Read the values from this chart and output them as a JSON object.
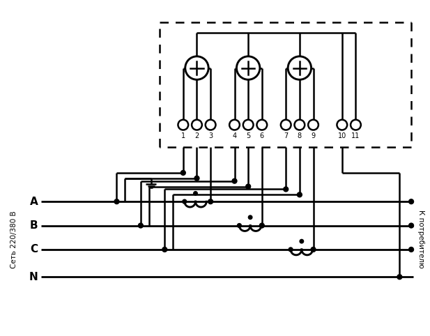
{
  "bg_color": "#ffffff",
  "line_color": "#000000",
  "lw": 1.8,
  "fig_width": 6.17,
  "fig_height": 4.82,
  "dpi": 100,
  "left_label": "Сеть 220/380 В",
  "right_label": "К потребителю",
  "phases": [
    "A",
    "B",
    "C",
    "N"
  ],
  "term_labels": [
    "1",
    "2",
    "3",
    "4",
    "5",
    "6",
    "7",
    "8",
    "9",
    "10",
    "11"
  ]
}
